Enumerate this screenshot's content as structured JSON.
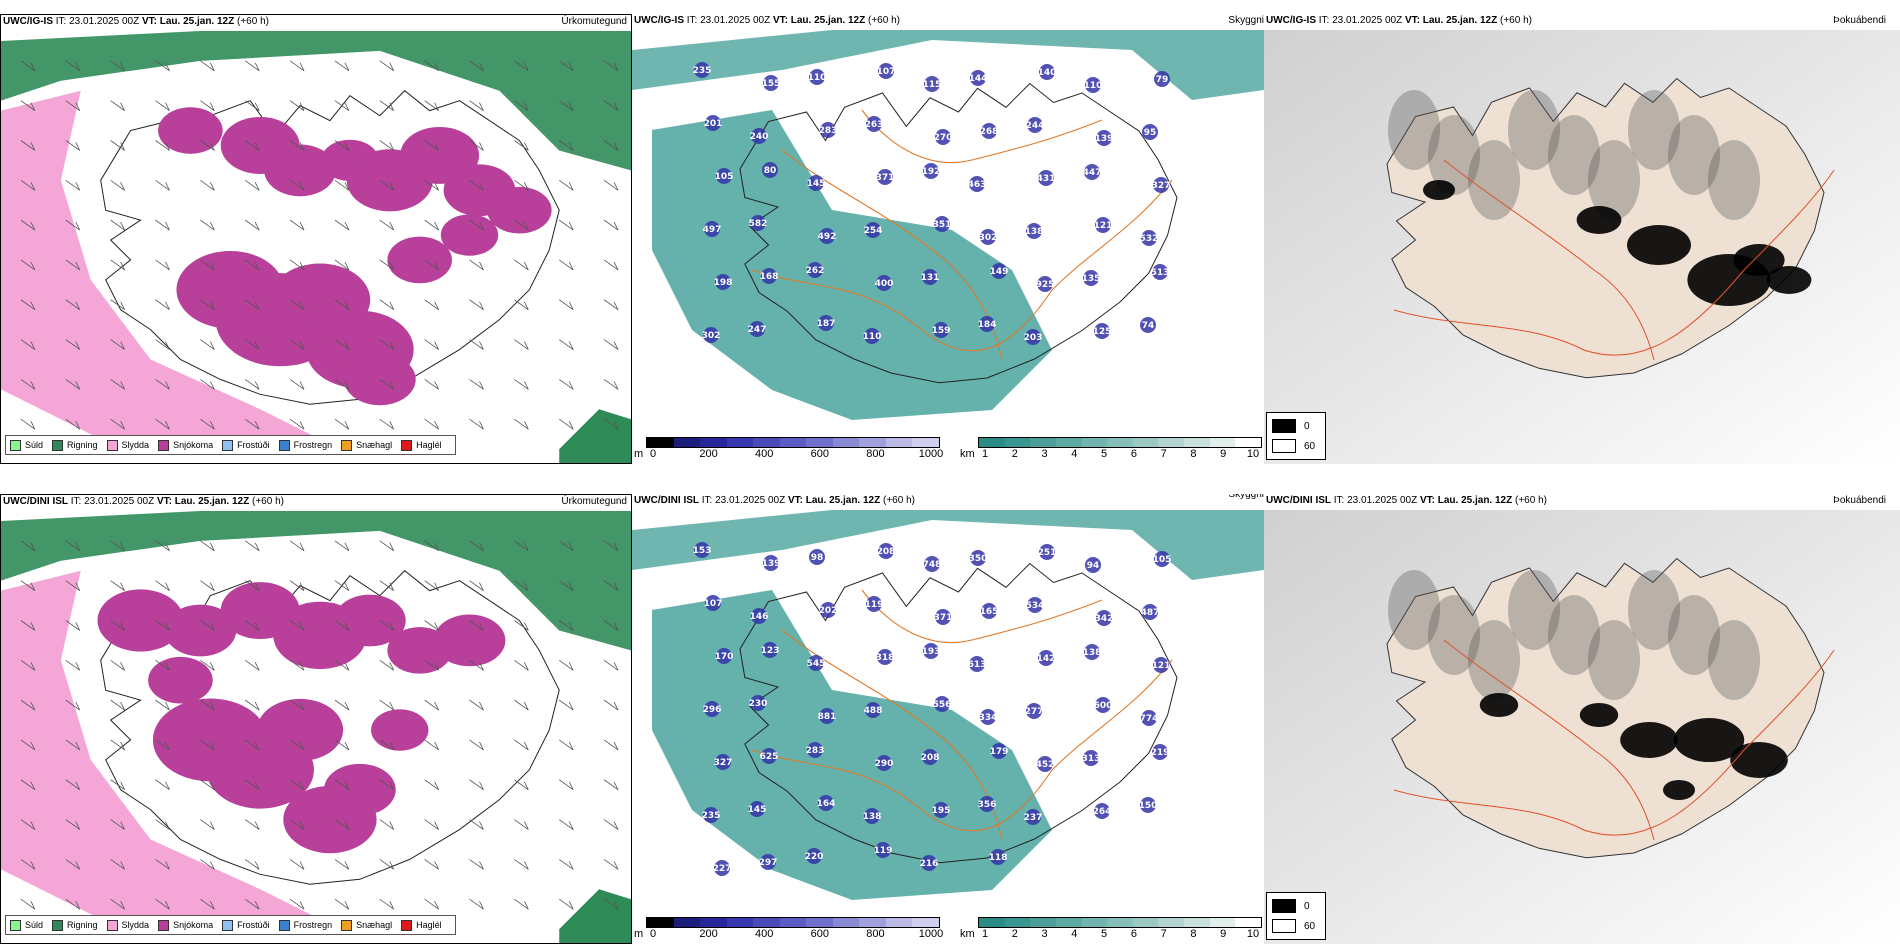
{
  "rows": [
    {
      "precip_header": {
        "model": "UWC/IG-IS",
        "it_label": "IT:",
        "it_value": "23.01.2025 00Z",
        "vt_label": "VT:",
        "vt_value": "Lau. 25.jan. 12Z",
        "lead": "(+60 h)",
        "title": "Úrkomutegund"
      },
      "cloud_header": {
        "model": "UWC/IG-IS",
        "it_label": "IT:",
        "it_value": "23.01.2025 00Z",
        "vt_label": "VT:",
        "vt_value": "Lau. 25.jan. 12Z",
        "lead": "(+60 h)",
        "title": "Skyggni"
      },
      "fog_header": {
        "model": "UWC/IG-IS",
        "it_label": "IT:",
        "it_value": "23.01.2025 00Z",
        "vt_label": "VT:",
        "vt_value": "Lau. 25.jan. 12Z",
        "lead": "(+60 h)",
        "title": "Þokuábendi"
      },
      "cloud_labels": [
        "235",
        "155",
        "110",
        "107",
        "115",
        "144",
        "140",
        "110",
        "79",
        "201",
        "240",
        "283",
        "263",
        "270",
        "268",
        "244",
        "139",
        "95",
        "105",
        "80",
        "145",
        "371",
        "192",
        "463",
        "431",
        "447",
        "327",
        "497",
        "582",
        "492",
        "254",
        "351",
        "302",
        "138",
        "121",
        "532",
        "198",
        "168",
        "262",
        "400",
        "131",
        "149",
        "925",
        "135",
        "513",
        "302",
        "247",
        "187",
        "110",
        "159",
        "184",
        "203",
        "125",
        "74"
      ],
      "precip_cells": [
        [
          130,
          70,
          18
        ],
        [
          200,
          85,
          22
        ],
        [
          240,
          110,
          20
        ],
        [
          290,
          100,
          16
        ],
        [
          330,
          120,
          24
        ],
        [
          380,
          95,
          22
        ],
        [
          420,
          130,
          20
        ],
        [
          460,
          150,
          18
        ],
        [
          170,
          230,
          30
        ],
        [
          220,
          260,
          36
        ],
        [
          260,
          240,
          28
        ],
        [
          300,
          290,
          30
        ],
        [
          320,
          320,
          20
        ],
        [
          360,
          200,
          18
        ],
        [
          410,
          175,
          16
        ]
      ],
      "fog_cells": [
        [
          90,
          140,
          10
        ],
        [
          250,
          170,
          14
        ],
        [
          310,
          195,
          20
        ],
        [
          380,
          230,
          26
        ],
        [
          410,
          210,
          16
        ],
        [
          440,
          230,
          14
        ]
      ]
    },
    {
      "precip_header": {
        "model": "UWC/DINI ISL",
        "it_label": "IT:",
        "it_value": "23.01.2025 00Z",
        "vt_label": "VT:",
        "vt_value": "Lau. 25.jan. 12Z",
        "lead": "(+60 h)",
        "title": "Úrkomutegund"
      },
      "cloud_header": {
        "model": "UWC/DINI ISL",
        "it_label": "IT:",
        "it_value": "23.01.2025 00Z",
        "vt_label": "VT:",
        "vt_value": "Lau. 25.jan. 12Z",
        "lead": "(+60 h)",
        "title": "Skyggni"
      },
      "fog_header": {
        "model": "UWC/DINI ISL",
        "it_label": "IT:",
        "it_value": "23.01.2025 00Z",
        "vt_label": "VT:",
        "vt_value": "Lau. 25.jan. 12Z",
        "lead": "(+60 h)",
        "title": "Þokuábendi"
      },
      "cloud_labels": [
        "153",
        "139",
        "98",
        "208",
        "748",
        "350",
        "251",
        "94",
        "105",
        "107",
        "146",
        "202",
        "119",
        "371",
        "165",
        "534",
        "342",
        "487",
        "170",
        "123",
        "545",
        "318",
        "193",
        "613",
        "142",
        "138",
        "121",
        "296",
        "230",
        "881",
        "488",
        "556",
        "334",
        "277",
        "600",
        "774",
        "327",
        "625",
        "283",
        "290",
        "208",
        "179",
        "452",
        "313",
        "219",
        "235",
        "145",
        "164",
        "138",
        "195",
        "356",
        "237",
        "264",
        "150",
        "227",
        "297",
        "220",
        "119",
        "216",
        "118"
      ],
      "precip_cells": [
        [
          80,
          80,
          24
        ],
        [
          140,
          90,
          20
        ],
        [
          200,
          70,
          22
        ],
        [
          260,
          95,
          26
        ],
        [
          310,
          80,
          20
        ],
        [
          360,
          110,
          18
        ],
        [
          410,
          100,
          20
        ],
        [
          150,
          200,
          32
        ],
        [
          200,
          230,
          30
        ],
        [
          240,
          190,
          24
        ],
        [
          270,
          280,
          26
        ],
        [
          300,
          250,
          20
        ],
        [
          340,
          190,
          16
        ],
        [
          120,
          140,
          18
        ]
      ],
      "fog_cells": [
        [
          150,
          175,
          12
        ],
        [
          250,
          185,
          12
        ],
        [
          300,
          210,
          18
        ],
        [
          360,
          210,
          22
        ],
        [
          410,
          230,
          18
        ],
        [
          330,
          260,
          10
        ]
      ]
    }
  ],
  "precip_legend": [
    {
      "label": "Súld",
      "color": "#8ef28e"
    },
    {
      "label": "Rigning",
      "color": "#2e8b57"
    },
    {
      "label": "Slydda",
      "color": "#f4a6d7"
    },
    {
      "label": "Snjókoma",
      "color": "#b8409a"
    },
    {
      "label": "Frostúði",
      "color": "#8ec0f0"
    },
    {
      "label": "Frostregn",
      "color": "#3a7fd0"
    },
    {
      "label": "Snæhagl",
      "color": "#f0a020"
    },
    {
      "label": "Haglél",
      "color": "#e01818"
    }
  ],
  "ceiling_colorbar": {
    "unit": "m",
    "ticks": [
      "0",
      "200",
      "400",
      "600",
      "800",
      "1000"
    ],
    "colors": [
      "#000000",
      "#1c1c7a",
      "#26269a",
      "#3838b0",
      "#4a4ab8",
      "#5c5cc4",
      "#7070cc",
      "#8a8ad4",
      "#a0a0dc",
      "#babae4",
      "#d0d0ee"
    ]
  },
  "vis_colorbar": {
    "unit": "km",
    "ticks": [
      "1",
      "2",
      "3",
      "4",
      "5",
      "6",
      "7",
      "8",
      "9",
      "10"
    ],
    "colors": [
      "#2a8c84",
      "#3a9690",
      "#4ca09a",
      "#5eaaa4",
      "#72b4ae",
      "#86beb8",
      "#9cc8c4",
      "#b2d4d0",
      "#c8e0dc",
      "#e0eeec",
      "#ffffff"
    ]
  },
  "fog_legend": [
    {
      "label": "0",
      "color": "#000000"
    },
    {
      "label": "60",
      "color": "#ffffff"
    }
  ],
  "colors": {
    "land_outline": "#222222",
    "roads": "#e07a2a",
    "cloud_sea": "#3f9e96",
    "fog_land": "#efe0d4",
    "snow": "#b8409a",
    "rain": "#2e8b57",
    "sleet": "#f4a6d7"
  }
}
